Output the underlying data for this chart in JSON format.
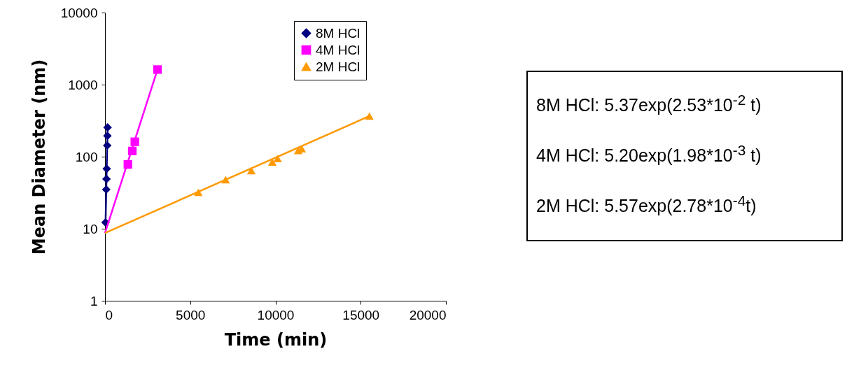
{
  "chart_data": {
    "type": "scatter",
    "xlabel": "Time (min)",
    "ylabel": "Mean Diameter (nm)",
    "log": "y",
    "xlim": [
      0,
      20000
    ],
    "xticks": [
      0,
      5000,
      10000,
      15000,
      20000
    ],
    "ylim": [
      1,
      10000
    ],
    "yticks": [
      1,
      10,
      100,
      1000,
      10000
    ],
    "grid": false,
    "legend": "top right",
    "series": [
      {
        "name": "8M HCl",
        "type": "line",
        "color": "#000080",
        "marker": "diamond",
        "x": [
          32,
          74,
          87,
          100,
          130,
          142,
          152
        ],
        "values": [
          12.2,
          35,
          49,
          68,
          143,
          195,
          255
        ]
      },
      {
        "name": "4M HCl",
        "color": "#ff00ff",
        "marker": "square",
        "x": [
          1343,
          1600,
          1750,
          3080
        ],
        "values": [
          78,
          120,
          161,
          1620
        ]
      },
      {
        "name": "2M HCl",
        "color": "#ff9900",
        "marker": "triangle",
        "x": [
          5475,
          7077,
          8583,
          9815,
          10130,
          11335,
          11540,
          15510
        ],
        "values": [
          32,
          48,
          64,
          84,
          94,
          122,
          129,
          366
        ]
      },
      {
        "type": "line",
        "color": "#ff00ff",
        "marker": "none",
        "x": [
          0,
          3080
        ],
        "values": [
          8.7,
          1620
        ]
      },
      {
        "type": "line",
        "color": "#ff9900",
        "marker": "none",
        "x": [
          0,
          15510
        ],
        "values": [
          8.7,
          366
        ]
      }
    ],
    "annotations": [
      "8M HCl: 5.37exp(2.53*10$^{-2}$ t)",
      "4M HCl: 5.20exp(1.98*10$^{-3}$ t)",
      "2M HCl: 5.57exp(2.78*10$^{-4}$t)"
    ]
  }
}
